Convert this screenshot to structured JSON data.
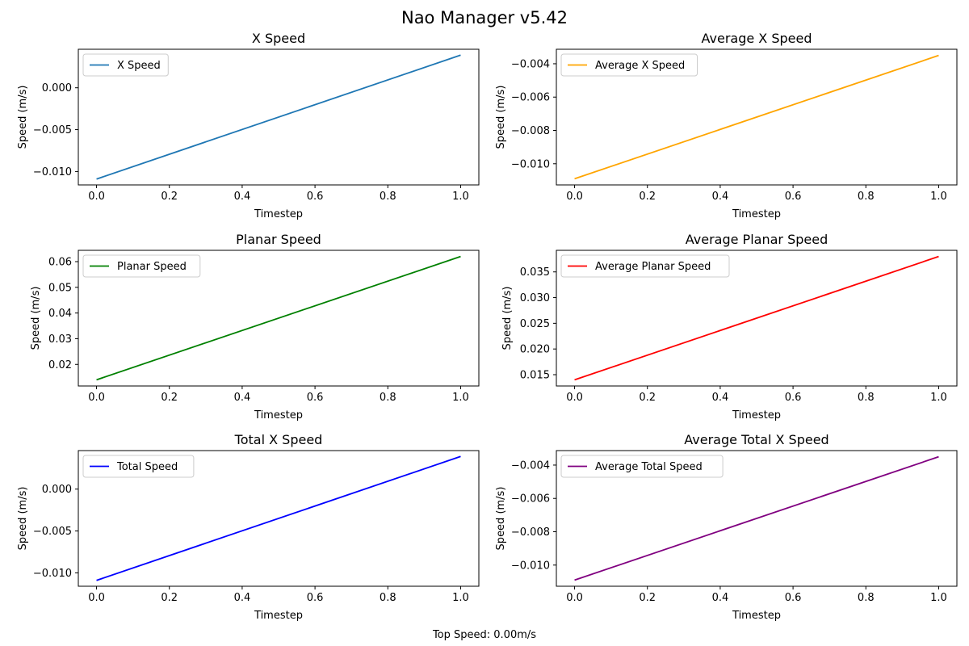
{
  "window_title": "Nao Manager v5.42",
  "footer_text": "Top Speed: 0.00m/s",
  "chart_data": [
    {
      "type": "line",
      "title": "X Speed",
      "xlabel": "Timestep",
      "ylabel": "Speed (m/s)",
      "x": [
        0.0,
        1.0
      ],
      "series": [
        {
          "name": "X Speed",
          "color": "#1f77b4",
          "values": [
            -0.0109,
            0.0039
          ]
        }
      ],
      "xlim": [
        -0.05,
        1.05
      ],
      "ylim": [
        -0.0116,
        0.0046
      ],
      "xticks": [
        0.0,
        0.2,
        0.4,
        0.6,
        0.8,
        1.0
      ],
      "xtick_labels": [
        "0.0",
        "0.2",
        "0.4",
        "0.6",
        "0.8",
        "1.0"
      ],
      "yticks": [
        -0.01,
        -0.005,
        0.0
      ],
      "ytick_labels": [
        "−0.010",
        "−0.005",
        "0.000"
      ],
      "legend": "upper-left",
      "grid": false
    },
    {
      "type": "line",
      "title": "Average X Speed",
      "xlabel": "Timestep",
      "ylabel": "Speed (m/s)",
      "x": [
        0.0,
        1.0
      ],
      "series": [
        {
          "name": "Average X Speed",
          "color": "#ffa500",
          "values": [
            -0.0109,
            -0.0035
          ]
        }
      ],
      "xlim": [
        -0.05,
        1.05
      ],
      "ylim": [
        -0.01127,
        -0.00313
      ],
      "xticks": [
        0.0,
        0.2,
        0.4,
        0.6,
        0.8,
        1.0
      ],
      "xtick_labels": [
        "0.0",
        "0.2",
        "0.4",
        "0.6",
        "0.8",
        "1.0"
      ],
      "yticks": [
        -0.01,
        -0.008,
        -0.006,
        -0.004
      ],
      "ytick_labels": [
        "−0.010",
        "−0.008",
        "−0.006",
        "−0.004"
      ],
      "legend": "upper-left",
      "grid": false
    },
    {
      "type": "line",
      "title": "Planar Speed",
      "xlabel": "Timestep",
      "ylabel": "Speed (m/s)",
      "x": [
        0.0,
        1.0
      ],
      "series": [
        {
          "name": "Planar Speed",
          "color": "#008000",
          "values": [
            0.014,
            0.062
          ]
        }
      ],
      "xlim": [
        -0.05,
        1.05
      ],
      "ylim": [
        0.0116,
        0.0644
      ],
      "xticks": [
        0.0,
        0.2,
        0.4,
        0.6,
        0.8,
        1.0
      ],
      "xtick_labels": [
        "0.0",
        "0.2",
        "0.4",
        "0.6",
        "0.8",
        "1.0"
      ],
      "yticks": [
        0.02,
        0.03,
        0.04,
        0.05,
        0.06
      ],
      "ytick_labels": [
        "0.02",
        "0.03",
        "0.04",
        "0.05",
        "0.06"
      ],
      "legend": "upper-left",
      "grid": false
    },
    {
      "type": "line",
      "title": "Average Planar Speed",
      "xlabel": "Timestep",
      "ylabel": "Speed (m/s)",
      "x": [
        0.0,
        1.0
      ],
      "series": [
        {
          "name": "Average Planar Speed",
          "color": "#ff0000",
          "values": [
            0.014,
            0.038
          ]
        }
      ],
      "xlim": [
        -0.05,
        1.05
      ],
      "ylim": [
        0.0128,
        0.0392
      ],
      "xticks": [
        0.0,
        0.2,
        0.4,
        0.6,
        0.8,
        1.0
      ],
      "xtick_labels": [
        "0.0",
        "0.2",
        "0.4",
        "0.6",
        "0.8",
        "1.0"
      ],
      "yticks": [
        0.015,
        0.02,
        0.025,
        0.03,
        0.035
      ],
      "ytick_labels": [
        "0.015",
        "0.020",
        "0.025",
        "0.030",
        "0.035"
      ],
      "legend": "upper-left",
      "grid": false
    },
    {
      "type": "line",
      "title": "Total X Speed",
      "xlabel": "Timestep",
      "ylabel": "Speed (m/s)",
      "x": [
        0.0,
        1.0
      ],
      "series": [
        {
          "name": "Total Speed",
          "color": "#0000ff",
          "values": [
            -0.0109,
            0.0039
          ]
        }
      ],
      "xlim": [
        -0.05,
        1.05
      ],
      "ylim": [
        -0.0116,
        0.0046
      ],
      "xticks": [
        0.0,
        0.2,
        0.4,
        0.6,
        0.8,
        1.0
      ],
      "xtick_labels": [
        "0.0",
        "0.2",
        "0.4",
        "0.6",
        "0.8",
        "1.0"
      ],
      "yticks": [
        -0.01,
        -0.005,
        0.0
      ],
      "ytick_labels": [
        "−0.010",
        "−0.005",
        "0.000"
      ],
      "legend": "upper-left",
      "grid": false
    },
    {
      "type": "line",
      "title": "Average Total X Speed",
      "xlabel": "Timestep",
      "ylabel": "Speed (m/s)",
      "x": [
        0.0,
        1.0
      ],
      "series": [
        {
          "name": "Average Total Speed",
          "color": "#800080",
          "values": [
            -0.0109,
            -0.0035
          ]
        }
      ],
      "xlim": [
        -0.05,
        1.05
      ],
      "ylim": [
        -0.01127,
        -0.00313
      ],
      "xticks": [
        0.0,
        0.2,
        0.4,
        0.6,
        0.8,
        1.0
      ],
      "xtick_labels": [
        "0.0",
        "0.2",
        "0.4",
        "0.6",
        "0.8",
        "1.0"
      ],
      "yticks": [
        -0.01,
        -0.008,
        -0.006,
        -0.004
      ],
      "ytick_labels": [
        "−0.010",
        "−0.008",
        "−0.006",
        "−0.004"
      ],
      "legend": "upper-left",
      "grid": false
    }
  ]
}
